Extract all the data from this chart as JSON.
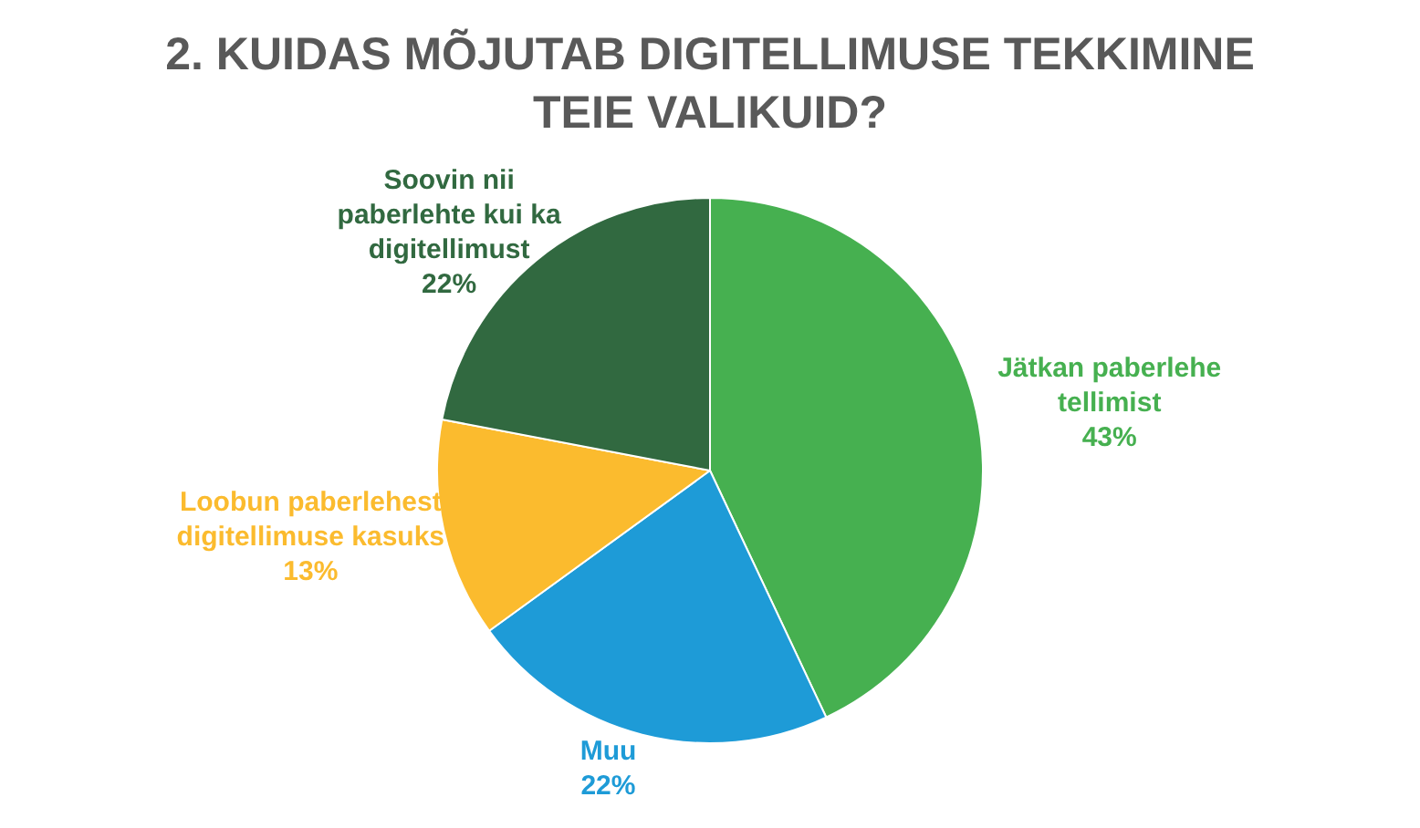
{
  "chart_data": {
    "type": "pie",
    "title": "2. KUIDAS MÕJUTAB DIGITELLIMUSE TEKKIMINE TEIE VALIKUID?",
    "categories": [
      "Jätkan paberlehe tellimist",
      "Muu",
      "Loobun paberlehest digitellimuse kasuks",
      "Soovin nii paberlehte kui ka digitellimust"
    ],
    "values": [
      43,
      22,
      13,
      22
    ],
    "colors": [
      "#46b050",
      "#1e9bd7",
      "#fbbb2e",
      "#316940"
    ],
    "value_labels": [
      "43%",
      "22%",
      "13%",
      "22%"
    ],
    "legend": false
  }
}
